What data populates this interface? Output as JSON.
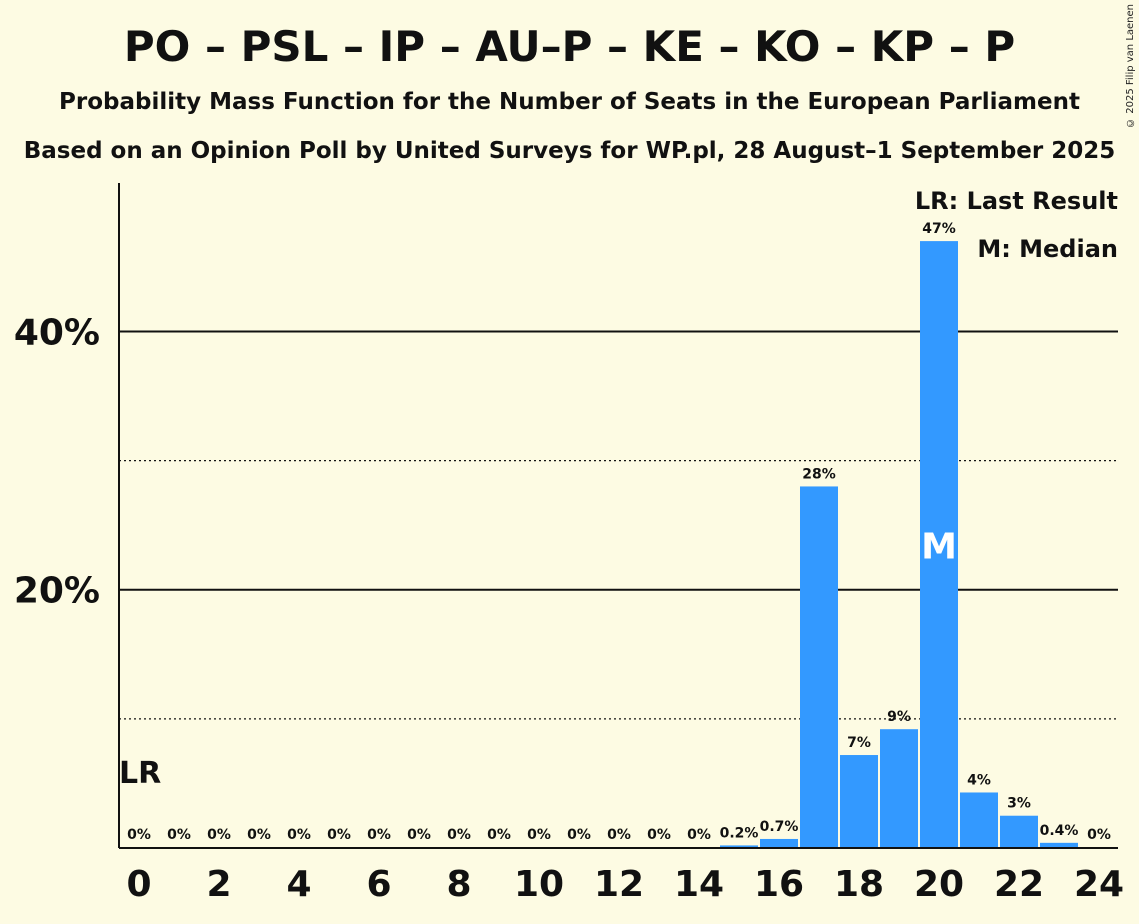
{
  "header": {
    "title": "PO – PSL – IP – AU–P – KE – KO – KP – P",
    "subtitle": "Probability Mass Function for the Number of Seats in the European Parliament",
    "source": "Based on an Opinion Poll by United Surveys for WP.pl, 28 August–1 September 2025",
    "copyright": "© 2025 Filip van Laenen"
  },
  "legend": {
    "lr": "LR: Last Result",
    "median": "M: Median"
  },
  "colors": {
    "background": "#fdfbe3",
    "bar": "#3399ff",
    "text": "#111111"
  },
  "chart_data": {
    "type": "bar",
    "x": [
      0,
      1,
      2,
      3,
      4,
      5,
      6,
      7,
      8,
      9,
      10,
      11,
      12,
      13,
      14,
      15,
      16,
      17,
      18,
      19,
      20,
      21,
      22,
      23,
      24
    ],
    "values": [
      0,
      0,
      0,
      0,
      0,
      0,
      0,
      0,
      0,
      0,
      0,
      0,
      0,
      0,
      0,
      0.2,
      0.7,
      28,
      7.2,
      9.2,
      47,
      4.3,
      2.5,
      0.4,
      0
    ],
    "data_labels": [
      "0%",
      "0%",
      "0%",
      "0%",
      "0%",
      "0%",
      "0%",
      "0%",
      "0%",
      "0%",
      "0%",
      "0%",
      "0%",
      "0%",
      "0%",
      "0.2%",
      "0.7%",
      "28%",
      "7%",
      "9%",
      "47%",
      "4%",
      "3%",
      "0.4%",
      "0%"
    ],
    "x_ticks": [
      "0",
      "2",
      "4",
      "6",
      "8",
      "10",
      "12",
      "14",
      "16",
      "18",
      "20",
      "22",
      "24"
    ],
    "y_ticks": [
      {
        "value": 20,
        "label": "20%"
      },
      {
        "value": 40,
        "label": "40%"
      }
    ],
    "y_minor_grid": [
      10,
      30
    ],
    "ylim": [
      0,
      51.5
    ],
    "last_result_seat": 0,
    "last_result_label": "LR",
    "median_seat": 20,
    "median_label": "M",
    "legend_position": "top-right",
    "grid": true
  }
}
